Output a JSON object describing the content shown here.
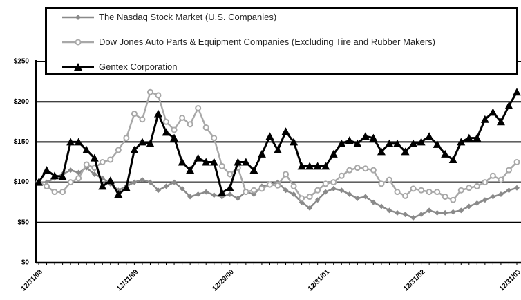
{
  "chart_data": {
    "type": "line",
    "categories": [
      "12/31/98",
      null,
      null,
      null,
      null,
      null,
      null,
      null,
      null,
      null,
      null,
      null,
      "12/31/99",
      null,
      null,
      null,
      null,
      null,
      null,
      null,
      null,
      null,
      null,
      null,
      "12/29/00",
      null,
      null,
      null,
      null,
      null,
      null,
      null,
      null,
      null,
      null,
      null,
      "12/31/01",
      null,
      null,
      null,
      null,
      null,
      null,
      null,
      null,
      null,
      null,
      null,
      "12/31/02",
      null,
      null,
      null,
      null,
      null,
      null,
      null,
      null,
      null,
      null,
      null,
      "12/31/03"
    ],
    "series": [
      {
        "name": "The Nasdaq Stock Market (U.S. Companies)",
        "color": "#8a8a8a",
        "marker": "diamond",
        "values": [
          100,
          100,
          105,
          110,
          115,
          112,
          118,
          110,
          105,
          98,
          90,
          95,
          100,
          103,
          100,
          90,
          95,
          100,
          92,
          82,
          85,
          88,
          84,
          82,
          85,
          80,
          88,
          85,
          95,
          97,
          100,
          90,
          85,
          75,
          68,
          78,
          88,
          92,
          90,
          85,
          80,
          82,
          75,
          70,
          65,
          62,
          60,
          56,
          60,
          65,
          62,
          62,
          63,
          65,
          70,
          74,
          78,
          82,
          85,
          90,
          93
        ]
      },
      {
        "name": "Dow Jones Auto Parts & Equipment Companies (Excluding Tire and Rubber Makers)",
        "color": "#a8a8a8",
        "marker": "circle",
        "values": [
          100,
          95,
          88,
          88,
          100,
          105,
          122,
          118,
          125,
          128,
          140,
          155,
          185,
          178,
          212,
          208,
          175,
          165,
          180,
          172,
          192,
          168,
          155,
          120,
          110,
          118,
          88,
          90,
          92,
          97,
          96,
          110,
          95,
          80,
          82,
          90,
          98,
          100,
          108,
          115,
          118,
          117,
          115,
          98,
          103,
          88,
          83,
          92,
          90,
          88,
          88,
          82,
          78,
          90,
          93,
          95,
          100,
          108,
          103,
          115,
          125
        ]
      },
      {
        "name": "Gentex Corporation",
        "color": "#000000",
        "marker": "triangle",
        "values": [
          100,
          115,
          108,
          107,
          150,
          150,
          140,
          130,
          95,
          102,
          85,
          93,
          140,
          150,
          148,
          185,
          162,
          155,
          125,
          115,
          130,
          125,
          125,
          87,
          93,
          125,
          125,
          115,
          135,
          157,
          140,
          163,
          150,
          120,
          120,
          120,
          120,
          135,
          148,
          152,
          148,
          157,
          155,
          138,
          148,
          148,
          138,
          148,
          150,
          157,
          147,
          135,
          128,
          150,
          155,
          155,
          178,
          187,
          175,
          195,
          212
        ]
      }
    ],
    "ylim": [
      0,
      250
    ],
    "yticks": [
      {
        "value": 0,
        "label": "$0"
      },
      {
        "value": 50,
        "label": "$50"
      },
      {
        "value": 100,
        "label": "$100"
      },
      {
        "value": 150,
        "label": "$150"
      },
      {
        "value": 200,
        "label": "$200"
      },
      {
        "value": 250,
        "label": "$250"
      }
    ],
    "grid": true
  }
}
